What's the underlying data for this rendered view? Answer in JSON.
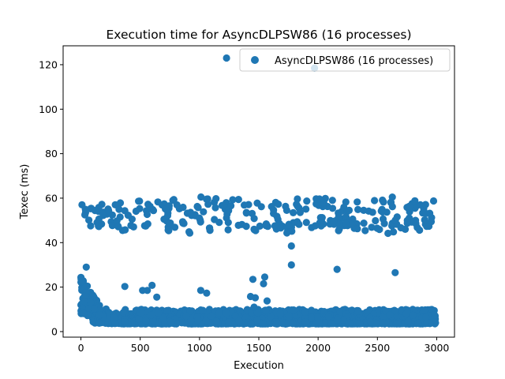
{
  "chart_data": {
    "type": "scatter",
    "title": "Execution time for AsyncDLPSW86 (16 processes)",
    "xlabel": "Execution",
    "ylabel": "Texec (ms)",
    "xlim": [
      -150,
      3150
    ],
    "ylim": [
      -2.5,
      128.5
    ],
    "xticks": [
      "0",
      "500",
      "1000",
      "1500",
      "2000",
      "2500",
      "3000"
    ],
    "yticks": [
      "0",
      "20",
      "40",
      "60",
      "80",
      "100",
      "120"
    ],
    "grid": false,
    "legend": {
      "position": "top-right"
    },
    "series": [
      {
        "name": "AsyncDLPSW86 (16 processes)",
        "color": "#1f77b4",
        "outliers": [
          [
            1228,
            123
          ],
          [
            1970,
            118.5
          ],
          [
            1775,
            38.5
          ],
          [
            1775,
            30
          ],
          [
            2160,
            28
          ],
          [
            2650,
            26.5
          ],
          [
            45,
            29
          ],
          [
            370,
            20.3
          ],
          [
            600,
            20.8
          ],
          [
            560,
            18.5
          ],
          [
            520,
            18.5
          ],
          [
            1010,
            18.5
          ],
          [
            1060,
            17.3
          ],
          [
            640,
            15.5
          ],
          [
            1430,
            15.8
          ],
          [
            1470,
            15.2
          ],
          [
            1450,
            23.5
          ],
          [
            1550,
            24.5
          ],
          [
            1540,
            21.5
          ],
          [
            1570,
            13.8
          ],
          [
            1460,
            11
          ]
        ],
        "upper_band": {
          "x_range": [
            0,
            3000
          ],
          "y_range": [
            44,
            63
          ],
          "count": 280
        },
        "startup_cluster": {
          "x_range": [
            0,
            160
          ],
          "y_range": [
            7,
            25
          ],
          "count": 110
        },
        "lower_band": {
          "x_range": [
            100,
            3000
          ],
          "y_range": [
            3.5,
            10
          ],
          "count": 1500
        }
      }
    ]
  }
}
